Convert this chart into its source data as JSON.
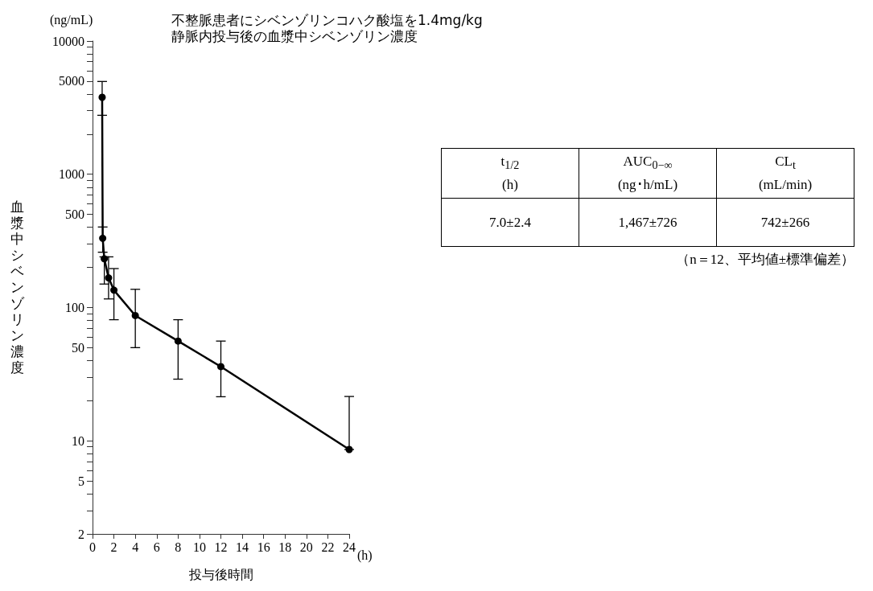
{
  "chart_data": {
    "type": "line",
    "title": "不整脈患者にシベンゾリンコハク酸塩を1.4mg/kg\n静脈内投与後の血漿中シベンゾリン濃度",
    "xlabel": "投与後時間",
    "ylabel": "血漿中シベンゾリン濃度",
    "annotations": [
      "(ng/mL)",
      "(h)",
      "t$_{1/2}$\n(h)",
      "AUC$_{0−∞}$\n(ng･h/mL)",
      "CL$_{t}$\n(mL/min)",
      "7.0±2.4",
      "1,467±726",
      "742±266",
      "（n＝12、平均値±標準偏差）"
    ],
    "x": [
      0.9,
      0.95,
      1.1,
      1.5,
      2,
      4,
      8,
      12,
      24
    ],
    "series": [
      {
        "color": "#000000",
        "values": [
          3780,
          331,
          232,
          167,
          135,
          87,
          56,
          36,
          8.6
        ],
        "errors": [
          [
            2770,
            4970
          ],
          [
            260,
            402
          ],
          [
            150,
            240
          ],
          [
            116,
            240
          ],
          [
            81,
            196
          ],
          [
            50,
            137
          ],
          [
            29,
            81
          ],
          [
            21.4,
            56
          ],
          [
            8.6,
            21.5
          ]
        ]
      }
    ],
    "log": "y",
    "xlim": [
      0,
      24
    ],
    "xticks": [
      0,
      2,
      4,
      6,
      8,
      10,
      12,
      14,
      16,
      18,
      20,
      22,
      24
    ],
    "ylim": [
      2,
      10000
    ],
    "yticks": [
      2,
      {
        "value": 3,
        "label": null
      },
      {
        "value": 4,
        "label": null
      },
      5,
      {
        "value": 6,
        "label": null
      },
      {
        "value": 7,
        "label": null
      },
      {
        "value": 8,
        "label": null
      },
      {
        "value": 9,
        "label": null
      },
      10,
      {
        "value": 20,
        "label": null
      },
      {
        "value": 30,
        "label": null
      },
      {
        "value": 40,
        "label": null
      },
      50,
      {
        "value": 60,
        "label": null
      },
      {
        "value": 70,
        "label": null
      },
      {
        "value": 80,
        "label": null
      },
      {
        "value": 90,
        "label": null
      },
      100,
      {
        "value": 200,
        "label": null
      },
      {
        "value": 300,
        "label": null
      },
      {
        "value": 400,
        "label": null
      },
      500,
      {
        "value": 600,
        "label": null
      },
      {
        "value": 700,
        "label": null
      },
      {
        "value": 800,
        "label": null
      },
      {
        "value": 900,
        "label": null
      },
      1000,
      {
        "value": 2000,
        "label": null
      },
      {
        "value": 3000,
        "label": null
      },
      {
        "value": 4000,
        "label": null
      },
      5000,
      {
        "value": 6000,
        "label": null
      },
      {
        "value": 7000,
        "label": null
      },
      {
        "value": 8000,
        "label": null
      },
      {
        "value": 9000,
        "label": null
      },
      10000
    ],
    "marker": "circle",
    "line_style": "solid",
    "grid": false
  }
}
